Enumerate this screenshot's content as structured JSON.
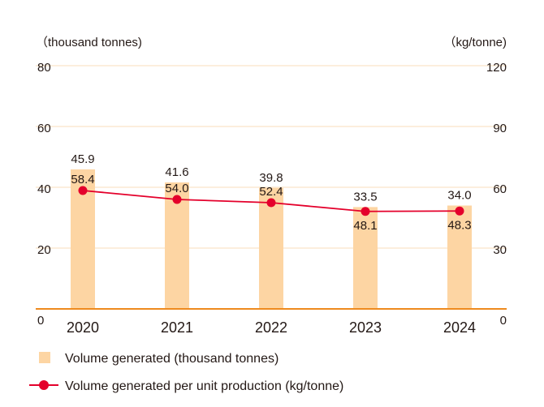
{
  "chart_data": {
    "type": "bar+line",
    "categories": [
      "2020",
      "2021",
      "2022",
      "2023",
      "2024"
    ],
    "left_axis": {
      "unit_label": "（thousand tonnes)",
      "ticks": [
        "0",
        "20",
        "40",
        "60",
        "80"
      ],
      "range": [
        0,
        80
      ]
    },
    "right_axis": {
      "unit_label": "（kg/tonne)",
      "ticks": [
        "0",
        "30",
        "60",
        "90",
        "120"
      ],
      "range": [
        0,
        120
      ]
    },
    "series": [
      {
        "name": "Volume generated (thousand tonnes)",
        "type": "bar",
        "axis": "left",
        "values": [
          45.9,
          41.6,
          39.8,
          33.5,
          34.0
        ],
        "labels": [
          "45.9",
          "41.6",
          "39.8",
          "33.5",
          "34.0"
        ]
      },
      {
        "name": "Volume generated per unit production (kg/tonne)",
        "type": "line",
        "axis": "right",
        "values": [
          58.4,
          54.0,
          52.4,
          48.1,
          48.3
        ],
        "labels": [
          "58.4",
          "54.0",
          "52.4",
          "48.1",
          "48.3"
        ]
      }
    ],
    "grid": true,
    "legend_position": "bottom-left"
  },
  "colors": {
    "bar": "#fdd5a3",
    "line": "#e4002b",
    "grid": "#fbe9d2",
    "baseline": "#ee8a1e"
  }
}
